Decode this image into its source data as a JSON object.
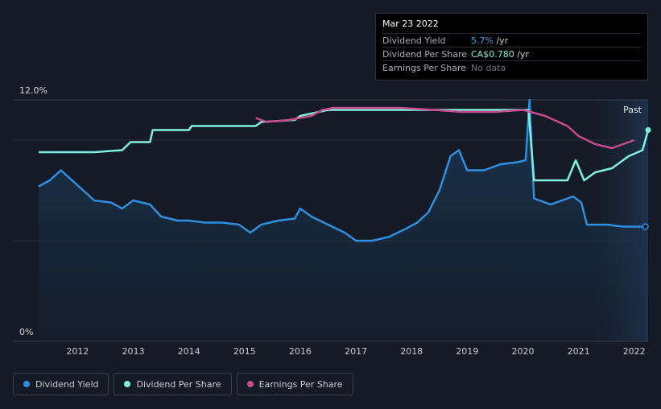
{
  "tooltip": {
    "date": "Mar 23 2022",
    "rows": [
      {
        "label": "Dividend Yield",
        "value": "5.7%",
        "unit": " /yr"
      },
      {
        "label": "Dividend Per Share",
        "value": "CA$0.780",
        "unit": " /yr"
      },
      {
        "label": "Earnings Per Share",
        "value": "No data",
        "unit": ""
      }
    ]
  },
  "past_label": "Past",
  "legend": [
    {
      "label": "Dividend Yield",
      "color": "#2e8fe0"
    },
    {
      "label": "Dividend Per Share",
      "color": "#7ff1dc"
    },
    {
      "label": "Earnings Per Share",
      "color": "#c64a8e"
    }
  ],
  "chart_data": {
    "type": "line",
    "ylim": [
      0,
      12
    ],
    "ytick_labels": [
      "12.0%",
      "0%"
    ],
    "xtick_labels": [
      "2012",
      "2013",
      "2014",
      "2015",
      "2016",
      "2017",
      "2018",
      "2019",
      "2020",
      "2021",
      "2022"
    ],
    "x_range": [
      2011.3,
      2022.25
    ],
    "series": [
      {
        "name": "Dividend Yield",
        "color": "#2e8fe0",
        "axis": "percent",
        "points": [
          [
            2011.3,
            7.7
          ],
          [
            2011.5,
            8.0
          ],
          [
            2011.7,
            8.5
          ],
          [
            2011.9,
            8.0
          ],
          [
            2012.1,
            7.5
          ],
          [
            2012.3,
            7.0
          ],
          [
            2012.6,
            6.9
          ],
          [
            2012.8,
            6.6
          ],
          [
            2013.0,
            7.0
          ],
          [
            2013.3,
            6.8
          ],
          [
            2013.5,
            6.2
          ],
          [
            2013.8,
            6.0
          ],
          [
            2014.0,
            6.0
          ],
          [
            2014.3,
            5.9
          ],
          [
            2014.6,
            5.9
          ],
          [
            2014.9,
            5.8
          ],
          [
            2015.1,
            5.4
          ],
          [
            2015.3,
            5.8
          ],
          [
            2015.6,
            6.0
          ],
          [
            2015.9,
            6.1
          ],
          [
            2016.0,
            6.6
          ],
          [
            2016.2,
            6.2
          ],
          [
            2016.5,
            5.8
          ],
          [
            2016.8,
            5.4
          ],
          [
            2017.0,
            5.0
          ],
          [
            2017.3,
            5.0
          ],
          [
            2017.6,
            5.2
          ],
          [
            2017.9,
            5.6
          ],
          [
            2018.1,
            5.9
          ],
          [
            2018.3,
            6.4
          ],
          [
            2018.5,
            7.5
          ],
          [
            2018.7,
            9.2
          ],
          [
            2018.85,
            9.5
          ],
          [
            2019.0,
            8.5
          ],
          [
            2019.3,
            8.5
          ],
          [
            2019.6,
            8.8
          ],
          [
            2019.9,
            8.9
          ],
          [
            2020.05,
            9.0
          ],
          [
            2020.12,
            12.0
          ],
          [
            2020.2,
            7.1
          ],
          [
            2020.5,
            6.8
          ],
          [
            2020.7,
            7.0
          ],
          [
            2020.9,
            7.2
          ],
          [
            2021.05,
            6.9
          ],
          [
            2021.15,
            5.8
          ],
          [
            2021.5,
            5.8
          ],
          [
            2021.8,
            5.7
          ],
          [
            2022.0,
            5.7
          ],
          [
            2022.2,
            5.7
          ]
        ]
      },
      {
        "name": "Dividend Per Share",
        "color": "#7ff1dc",
        "axis": "dps",
        "points": [
          [
            2011.3,
            9.4
          ],
          [
            2012.3,
            9.4
          ],
          [
            2012.8,
            9.5
          ],
          [
            2012.95,
            9.9
          ],
          [
            2013.3,
            9.9
          ],
          [
            2013.35,
            10.5
          ],
          [
            2014.0,
            10.5
          ],
          [
            2014.05,
            10.7
          ],
          [
            2015.2,
            10.7
          ],
          [
            2015.3,
            10.9
          ],
          [
            2015.9,
            11.0
          ],
          [
            2016.0,
            11.2
          ],
          [
            2016.5,
            11.5
          ],
          [
            2017.5,
            11.5
          ],
          [
            2019.5,
            11.5
          ],
          [
            2020.1,
            11.5
          ],
          [
            2020.2,
            8.0
          ],
          [
            2020.8,
            8.0
          ],
          [
            2020.95,
            9.0
          ],
          [
            2021.1,
            8.0
          ],
          [
            2021.3,
            8.4
          ],
          [
            2021.6,
            8.6
          ],
          [
            2021.9,
            9.2
          ],
          [
            2022.15,
            9.5
          ],
          [
            2022.25,
            10.5
          ]
        ]
      },
      {
        "name": "Earnings Per Share",
        "color": "#c64a8e",
        "axis": "eps",
        "points": [
          [
            2015.2,
            11.1
          ],
          [
            2015.4,
            10.9
          ],
          [
            2015.8,
            11.0
          ],
          [
            2016.2,
            11.2
          ],
          [
            2016.4,
            11.5
          ],
          [
            2016.6,
            11.6
          ],
          [
            2017.3,
            11.6
          ],
          [
            2017.8,
            11.6
          ],
          [
            2018.4,
            11.5
          ],
          [
            2018.9,
            11.4
          ],
          [
            2019.5,
            11.4
          ],
          [
            2020.0,
            11.5
          ],
          [
            2020.4,
            11.2
          ],
          [
            2020.8,
            10.7
          ],
          [
            2021.0,
            10.2
          ],
          [
            2021.3,
            9.8
          ],
          [
            2021.6,
            9.6
          ],
          [
            2021.9,
            9.9
          ],
          [
            2022.0,
            10.0
          ]
        ]
      }
    ]
  }
}
